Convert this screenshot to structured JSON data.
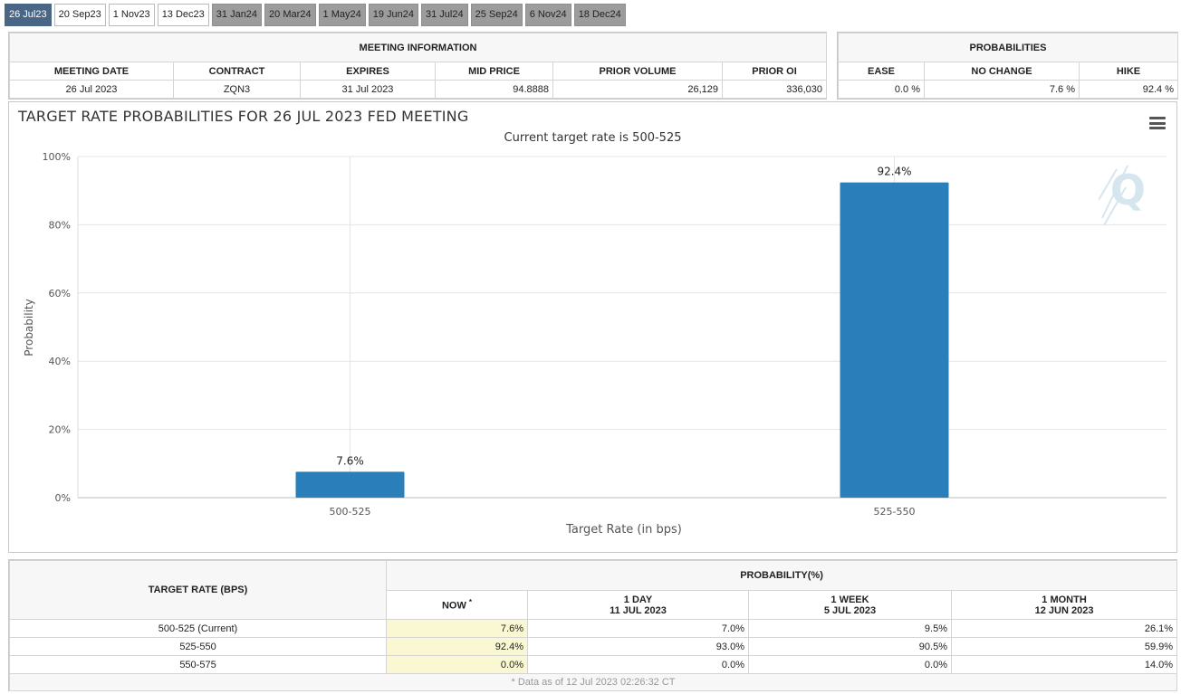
{
  "tabs": [
    {
      "label": "26 Jul23",
      "state": "active"
    },
    {
      "label": "20 Sep23",
      "state": "normal"
    },
    {
      "label": "1 Nov23",
      "state": "normal"
    },
    {
      "label": "13 Dec23",
      "state": "normal"
    },
    {
      "label": "31 Jan24",
      "state": "grey"
    },
    {
      "label": "20 Mar24",
      "state": "grey"
    },
    {
      "label": "1 May24",
      "state": "grey"
    },
    {
      "label": "19 Jun24",
      "state": "grey"
    },
    {
      "label": "31 Jul24",
      "state": "grey"
    },
    {
      "label": "25 Sep24",
      "state": "grey"
    },
    {
      "label": "6 Nov24",
      "state": "grey"
    },
    {
      "label": "18 Dec24",
      "state": "grey"
    }
  ],
  "meeting_info": {
    "title": "MEETING INFORMATION",
    "headers": [
      "MEETING DATE",
      "CONTRACT",
      "EXPIRES",
      "MID PRICE",
      "PRIOR VOLUME",
      "PRIOR OI"
    ],
    "values": [
      "26 Jul 2023",
      "ZQN3",
      "31 Jul 2023",
      "94.8888",
      "26,129",
      "336,030"
    ]
  },
  "probabilities": {
    "title": "PROBABILITIES",
    "headers": [
      "EASE",
      "NO CHANGE",
      "HIKE"
    ],
    "values": [
      "0.0 %",
      "7.6 %",
      "92.4 %"
    ]
  },
  "chart": {
    "menu_icon": "hamburger-menu-icon",
    "watermark": "Q",
    "bar_color": "#2a7fba"
  },
  "chart_data": {
    "type": "bar",
    "title": "TARGET RATE PROBABILITIES FOR 26 JUL 2023 FED MEETING",
    "subtitle": "Current target rate is 500-525",
    "categories": [
      "500-525",
      "525-550"
    ],
    "values": [
      7.6,
      92.4
    ],
    "data_labels": [
      "7.6%",
      "92.4%"
    ],
    "xlabel": "Target Rate (in bps)",
    "ylabel": "Probability",
    "ylim": [
      0,
      100
    ],
    "yticks": [
      "0%",
      "20%",
      "40%",
      "60%",
      "80%",
      "100%"
    ],
    "grid": true
  },
  "prob_table": {
    "target_header": "TARGET RATE (BPS)",
    "prob_header": "PROBABILITY(%)",
    "columns": [
      {
        "label": "NOW",
        "sub": "",
        "mark": "*"
      },
      {
        "label": "1 DAY",
        "sub": "11 JUL 2023",
        "mark": ""
      },
      {
        "label": "1 WEEK",
        "sub": "5 JUL 2023",
        "mark": ""
      },
      {
        "label": "1 MONTH",
        "sub": "12 JUN 2023",
        "mark": ""
      }
    ],
    "rows": [
      {
        "rate": "500-525 (Current)",
        "cells": [
          "7.6%",
          "7.0%",
          "9.5%",
          "26.1%"
        ]
      },
      {
        "rate": "525-550",
        "cells": [
          "92.4%",
          "93.0%",
          "90.5%",
          "59.9%"
        ]
      },
      {
        "rate": "550-575",
        "cells": [
          "0.0%",
          "0.0%",
          "0.0%",
          "14.0%"
        ]
      }
    ],
    "footnote": "* Data as of 12 Jul 2023 02:26:32 CT"
  }
}
